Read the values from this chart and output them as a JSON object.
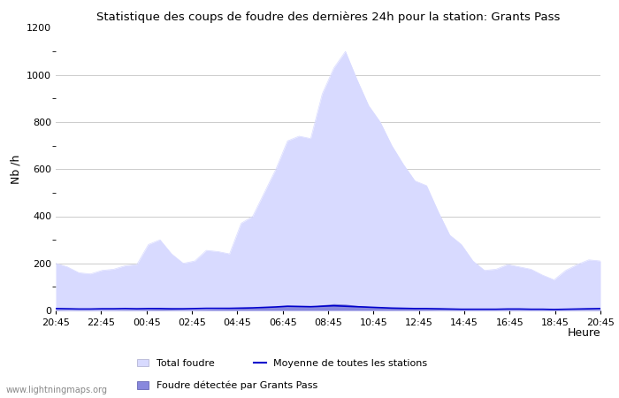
{
  "title": "Statistique des coups de foudre des dernières 24h pour la station: Grants Pass",
  "xlabel": "Heure",
  "ylabel": "Nb /h",
  "xlim": [
    0,
    48
  ],
  "ylim": [
    0,
    1200
  ],
  "yticks": [
    0,
    200,
    400,
    600,
    800,
    1000,
    1200
  ],
  "ytick_minor": [
    100,
    300,
    500,
    700,
    900,
    1100
  ],
  "xtick_labels": [
    "20:45",
    "22:45",
    "00:45",
    "02:45",
    "04:45",
    "06:45",
    "08:45",
    "10:45",
    "12:45",
    "14:45",
    "16:45",
    "18:45",
    "20:45"
  ],
  "xtick_positions": [
    0,
    4,
    8,
    12,
    16,
    20,
    24,
    28,
    32,
    36,
    40,
    44,
    48
  ],
  "background_color": "#ffffff",
  "plot_bg_color": "#ffffff",
  "grid_color": "#cccccc",
  "total_foudre_color": "#d8daff",
  "grants_pass_color": "#8888dd",
  "moyenne_color": "#0000cc",
  "watermark": "www.lightningmaps.org",
  "legend_total": "Total foudre",
  "legend_moyenne": "Moyenne de toutes les stations",
  "legend_grants": "Foudre détectée par Grants Pass",
  "total_foudre": [
    200,
    185,
    160,
    155,
    170,
    175,
    190,
    195,
    280,
    300,
    240,
    200,
    210,
    255,
    250,
    240,
    370,
    400,
    500,
    600,
    720,
    740,
    730,
    920,
    1030,
    1100,
    980,
    870,
    800,
    700,
    620,
    550,
    530,
    420,
    320,
    280,
    210,
    170,
    175,
    195,
    185,
    175,
    150,
    130,
    170,
    195,
    215,
    210
  ],
  "grants_pass": [
    4,
    3,
    2,
    2,
    3,
    3,
    4,
    4,
    5,
    6,
    5,
    4,
    4,
    5,
    6,
    7,
    9,
    11,
    14,
    17,
    20,
    19,
    17,
    24,
    29,
    27,
    21,
    17,
    14,
    11,
    9,
    7,
    6,
    5,
    4,
    3,
    2,
    2,
    2,
    3,
    3,
    2,
    2,
    2,
    2,
    3,
    4,
    4
  ],
  "moyenne": [
    8,
    7,
    6,
    6,
    7,
    7,
    8,
    7,
    8,
    8,
    7,
    7,
    8,
    9,
    9,
    9,
    10,
    11,
    13,
    15,
    18,
    17,
    16,
    18,
    20,
    18,
    16,
    14,
    12,
    10,
    9,
    8,
    8,
    7,
    6,
    5,
    5,
    5,
    5,
    6,
    6,
    5,
    5,
    4,
    5,
    6,
    7,
    8
  ]
}
